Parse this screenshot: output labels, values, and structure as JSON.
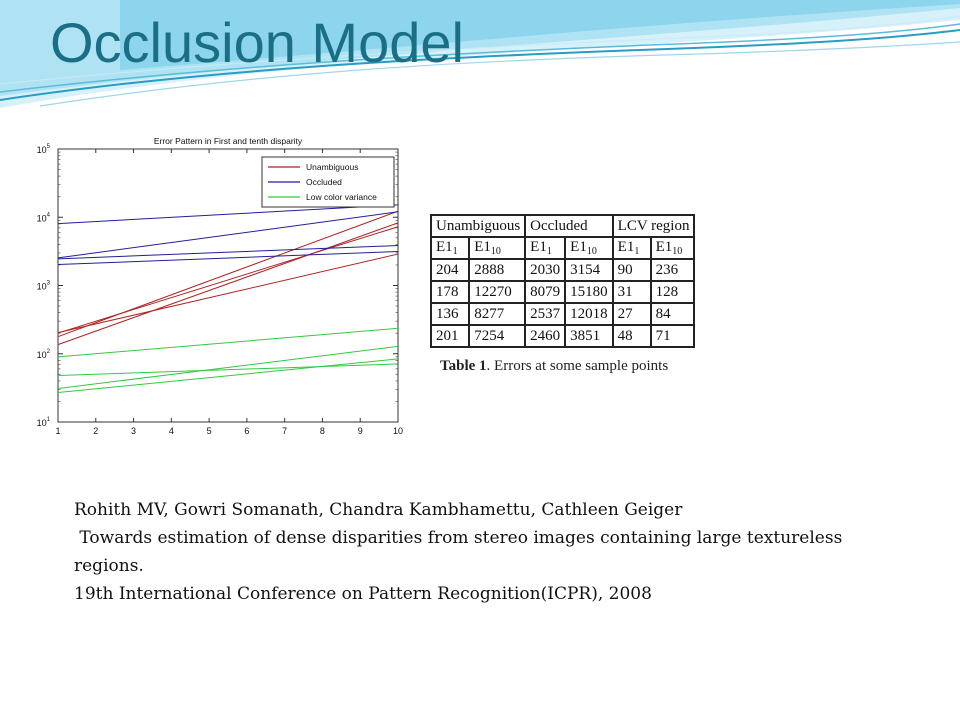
{
  "slide": {
    "title": "Occlusion Model"
  },
  "chart_data": {
    "type": "line",
    "title": "Error Pattern in First and tenth disparity",
    "xlabel": "",
    "ylabel": "",
    "xlim": [
      1,
      10
    ],
    "ylim": [
      10,
      100000
    ],
    "yscale": "log",
    "x_ticks": [
      "1",
      "2",
      "3",
      "4",
      "5",
      "6",
      "7",
      "8",
      "9",
      "10"
    ],
    "y_ticks": [
      {
        "base": "10",
        "exp": "1",
        "value": 10
      },
      {
        "base": "10",
        "exp": "2",
        "value": 100
      },
      {
        "base": "10",
        "exp": "3",
        "value": 1000
      },
      {
        "base": "10",
        "exp": "4",
        "value": 10000
      },
      {
        "base": "10",
        "exp": "5",
        "value": 100000
      }
    ],
    "grid": false,
    "legend_position": "top-right",
    "legend": [
      {
        "label": "Unambiguous",
        "color": "#b22222"
      },
      {
        "label": "Occluded",
        "color": "#1f1f9a"
      },
      {
        "label": "Low color variance",
        "color": "#2ecc40"
      }
    ],
    "series": [
      {
        "group": "Unambiguous",
        "color": "#b22222",
        "x": [
          1,
          10
        ],
        "y": [
          204,
          2888
        ]
      },
      {
        "group": "Unambiguous",
        "color": "#b22222",
        "x": [
          1,
          10
        ],
        "y": [
          178,
          12270
        ]
      },
      {
        "group": "Unambiguous",
        "color": "#b22222",
        "x": [
          1,
          10
        ],
        "y": [
          136,
          8277
        ]
      },
      {
        "group": "Unambiguous",
        "color": "#b22222",
        "x": [
          1,
          10
        ],
        "y": [
          201,
          7254
        ]
      },
      {
        "group": "Occluded",
        "color": "#1f1f9a",
        "x": [
          1,
          10
        ],
        "y": [
          2030,
          3154
        ]
      },
      {
        "group": "Occluded",
        "color": "#1f1f9a",
        "x": [
          1,
          10
        ],
        "y": [
          8079,
          15180
        ]
      },
      {
        "group": "Occluded",
        "color": "#1f1f9a",
        "x": [
          1,
          10
        ],
        "y": [
          2537,
          12018
        ]
      },
      {
        "group": "Occluded",
        "color": "#1f1f9a",
        "x": [
          1,
          10
        ],
        "y": [
          2460,
          3851
        ]
      },
      {
        "group": "Low color variance",
        "color": "#2ecc40",
        "x": [
          1,
          10
        ],
        "y": [
          90,
          236
        ]
      },
      {
        "group": "Low color variance",
        "color": "#2ecc40",
        "x": [
          1,
          10
        ],
        "y": [
          31,
          128
        ]
      },
      {
        "group": "Low color variance",
        "color": "#2ecc40",
        "x": [
          1,
          10
        ],
        "y": [
          27,
          84
        ]
      },
      {
        "group": "Low color variance",
        "color": "#2ecc40",
        "x": [
          1,
          10
        ],
        "y": [
          48,
          71
        ]
      }
    ]
  },
  "table": {
    "groups": [
      "Unambiguous",
      "Occluded",
      "LCV region"
    ],
    "subheaders": [
      {
        "base": "E1",
        "sub": "1"
      },
      {
        "base": "E1",
        "sub": "10"
      },
      {
        "base": "E1",
        "sub": "1"
      },
      {
        "base": "E1",
        "sub": "10"
      },
      {
        "base": "E1",
        "sub": "1"
      },
      {
        "base": "E1",
        "sub": "10"
      }
    ],
    "rows": [
      [
        "204",
        "2888",
        "2030",
        "3154",
        "90",
        "236"
      ],
      [
        "178",
        "12270",
        "8079",
        "15180",
        "31",
        "128"
      ],
      [
        "136",
        "8277",
        "2537",
        "12018",
        "27",
        "84"
      ],
      [
        "201",
        "7254",
        "2460",
        "3851",
        "48",
        "71"
      ]
    ],
    "caption_label": "Table 1",
    "caption_text": ". Errors at some sample points"
  },
  "citation": {
    "authors": "Rohith MV, Gowri Somanath, Chandra Kambhamettu, Cathleen Geiger",
    "title_line1": " Towards estimation of dense disparities from stereo images containing large textureless",
    "title_line2": "regions.",
    "venue": "19th International Conference on Pattern Recognition(ICPR), 2008"
  },
  "colors": {
    "title": "#1a6f86",
    "wave_light": "#bfe8f5",
    "wave_mid": "#7fd0ea",
    "wave_dark": "#2a9cc4"
  }
}
